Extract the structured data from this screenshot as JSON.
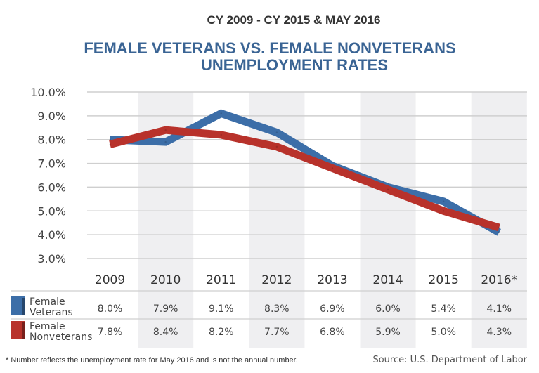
{
  "chart_data": {
    "type": "line",
    "subtitle": "CY 2009 - CY 2015 & MAY 2016",
    "title_lines": [
      "FEMALE VETERANS VS. FEMALE NONVETERANS",
      "UNEMPLOYMENT RATES"
    ],
    "categories": [
      "2009",
      "2010",
      "2011",
      "2012",
      "2013",
      "2014",
      "2015",
      "2016*"
    ],
    "y_ticks": [
      "10.0%",
      "9.0%",
      "8.0%",
      "7.0%",
      "6.0%",
      "5.0%",
      "4.0%",
      "3.0%"
    ],
    "ylim": [
      3.0,
      10.0
    ],
    "ylabel": "",
    "xlabel": "",
    "grid": true,
    "legend_position": "bottom-table",
    "series": [
      {
        "name": "Female Veterans",
        "label_lines": [
          "Female",
          "Veterans"
        ],
        "color": "#3c6ea8",
        "values": [
          8.0,
          7.9,
          9.1,
          8.3,
          6.9,
          6.0,
          5.4,
          4.1
        ],
        "value_labels": [
          "8.0%",
          "7.9%",
          "9.1%",
          "8.3%",
          "6.9%",
          "6.0%",
          "5.4%",
          "4.1%"
        ]
      },
      {
        "name": "Female Nonveterans",
        "label_lines": [
          "Female",
          "Nonveterans"
        ],
        "color": "#b8322b",
        "values": [
          7.8,
          8.4,
          8.2,
          7.7,
          6.8,
          5.9,
          5.0,
          4.3
        ],
        "value_labels": [
          "7.8%",
          "8.4%",
          "8.2%",
          "7.7%",
          "6.8%",
          "5.9%",
          "5.0%",
          "4.3%"
        ]
      }
    ],
    "footnote": "* Number reflects the unemployment rate for May 2016 and is not the annual number.",
    "source": "Source: U.S. Department of Labor"
  },
  "colors": {
    "title": "#3a6494",
    "band": "#efeff1",
    "grid": "#cfcfcf"
  }
}
